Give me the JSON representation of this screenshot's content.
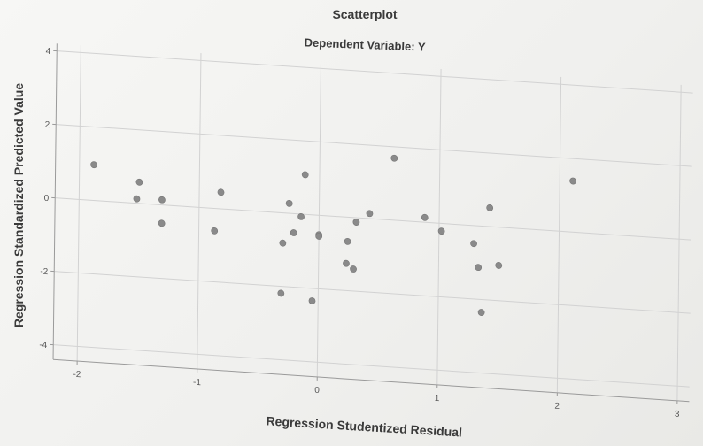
{
  "chart_data": {
    "type": "scatter",
    "title": "Scatterplot",
    "subtitle": "Dependent Variable: Y",
    "xlabel": "Regression Studentized Residual",
    "ylabel": "Regression Standardized Predicted Value",
    "xlim": [
      -2.2,
      3.1
    ],
    "ylim": [
      -4.4,
      4.2
    ],
    "x_ticks": [
      "-2",
      "-1",
      "0",
      "1",
      "2",
      "3"
    ],
    "x_tick_values": [
      -2,
      -1,
      0,
      1,
      2,
      3
    ],
    "y_ticks": [
      "4",
      "2",
      "0",
      "-2",
      "-4"
    ],
    "y_tick_values": [
      4,
      2,
      0,
      -2,
      -4
    ],
    "grid": true,
    "marker_color": "#8a8a8a",
    "grid_color": "#d2d2d2",
    "points": [
      {
        "x": -1.88,
        "y": 0.97
      },
      {
        "x": -1.5,
        "y": 0.58
      },
      {
        "x": -1.52,
        "y": 0.12
      },
      {
        "x": -1.31,
        "y": 0.14
      },
      {
        "x": -1.31,
        "y": -0.5
      },
      {
        "x": -0.87,
        "y": -0.61
      },
      {
        "x": -0.82,
        "y": 0.45
      },
      {
        "x": -0.3,
        "y": -0.82
      },
      {
        "x": -0.25,
        "y": 0.27
      },
      {
        "x": -0.21,
        "y": -0.52
      },
      {
        "x": -0.31,
        "y": -2.19
      },
      {
        "x": -0.15,
        "y": -0.07
      },
      {
        "x": -0.12,
        "y": 1.08
      },
      {
        "x": -0.05,
        "y": -2.34
      },
      {
        "x": 0.0,
        "y": -0.53
      },
      {
        "x": 0.0,
        "y": -0.57
      },
      {
        "x": 0.24,
        "y": -0.66
      },
      {
        "x": 0.23,
        "y": -1.26
      },
      {
        "x": 0.29,
        "y": -1.4
      },
      {
        "x": 0.31,
        "y": -0.12
      },
      {
        "x": 0.42,
        "y": 0.14
      },
      {
        "x": 0.62,
        "y": 1.69
      },
      {
        "x": 0.88,
        "y": 0.13
      },
      {
        "x": 1.02,
        "y": -0.21
      },
      {
        "x": 1.29,
        "y": -0.49
      },
      {
        "x": 1.33,
        "y": -1.13
      },
      {
        "x": 1.36,
        "y": -2.35
      },
      {
        "x": 1.42,
        "y": 0.51
      },
      {
        "x": 1.5,
        "y": -1.04
      },
      {
        "x": 2.11,
        "y": 1.39
      }
    ]
  }
}
